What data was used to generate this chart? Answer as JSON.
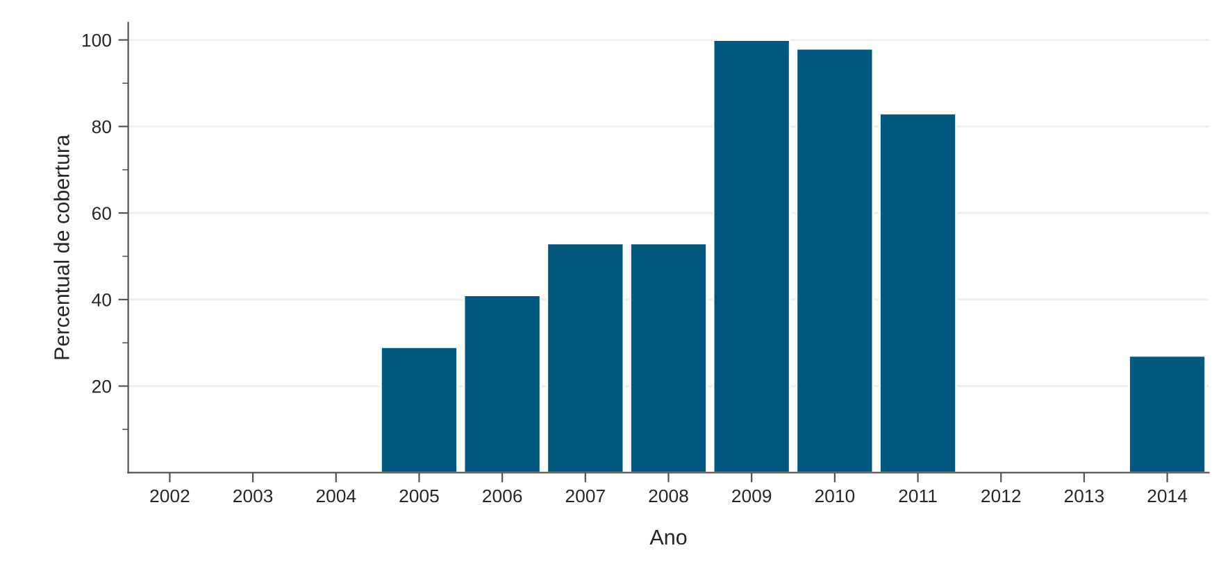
{
  "chart_data": {
    "type": "bar",
    "xlabel": "Ano",
    "ylabel": "Percentual de cobertura",
    "categories": [
      "2002",
      "2003",
      "2004",
      "2005",
      "2006",
      "2007",
      "2008",
      "2009",
      "2010",
      "2011",
      "2012",
      "2013",
      "2014"
    ],
    "values": [
      null,
      null,
      null,
      29,
      41,
      53,
      53,
      100,
      98,
      83,
      null,
      null,
      27
    ],
    "color": "#02597f",
    "ylim": [
      0,
      104
    ],
    "yticks": [
      {
        "value": 10,
        "label": null
      },
      20,
      {
        "value": 30,
        "label": null
      },
      40,
      {
        "value": 50,
        "label": null
      },
      60,
      {
        "value": 70,
        "label": null
      },
      80,
      {
        "value": 90,
        "label": null
      },
      100
    ],
    "grid": "y"
  }
}
